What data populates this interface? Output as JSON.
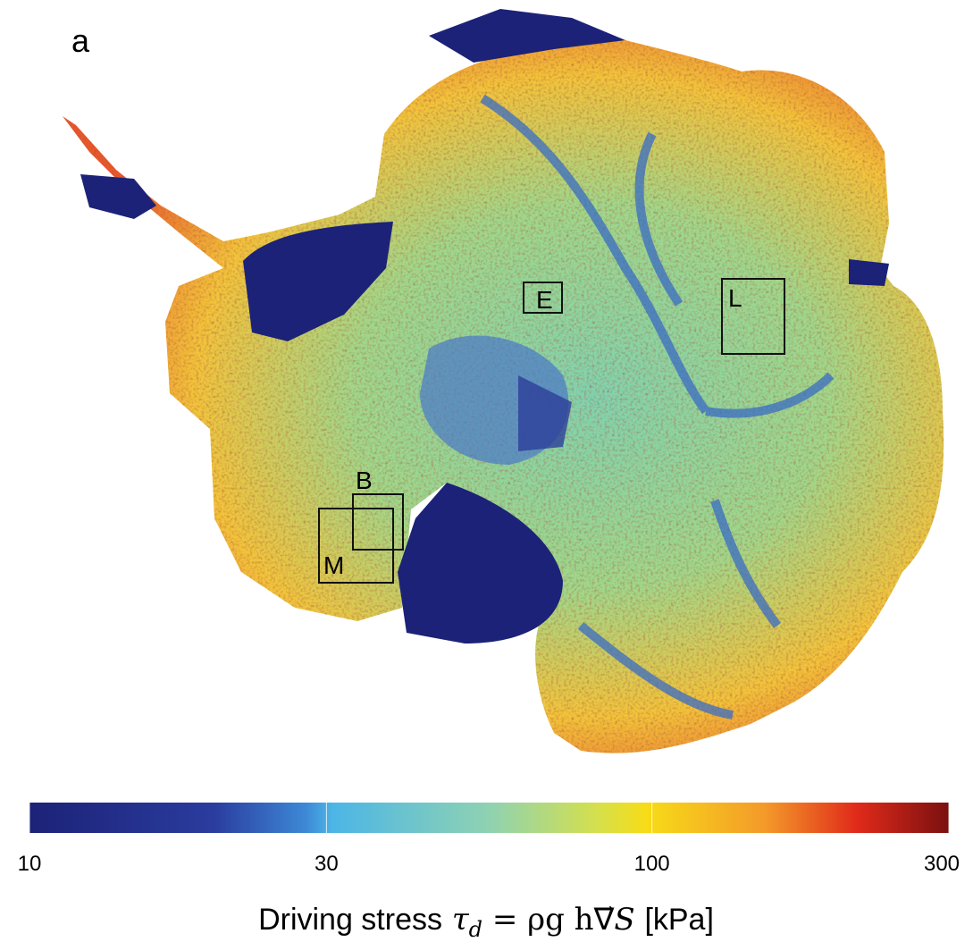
{
  "panel_label": "a",
  "boxes": [
    {
      "label": "E"
    },
    {
      "label": "L"
    },
    {
      "label": "B"
    },
    {
      "label": "M"
    }
  ],
  "colorbar": {
    "range": [
      10,
      300
    ],
    "scale": "log",
    "ticks": [
      10,
      30,
      100,
      300
    ],
    "label": {
      "text": "Driving stress",
      "symbol": "τ",
      "subscript": "d",
      "equation": "= ρg h",
      "operator": "∇⃗",
      "variable": "S",
      "unit": "[kPa]"
    }
  }
}
